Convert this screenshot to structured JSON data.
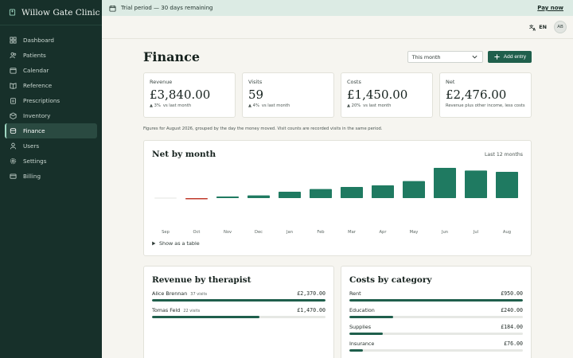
{
  "brand": {
    "name": "Willow Gate Clinic"
  },
  "sidebar": {
    "items": [
      {
        "label": "Dashboard",
        "icon": "grid-icon"
      },
      {
        "label": "Patients",
        "icon": "users-icon"
      },
      {
        "label": "Calendar",
        "icon": "calendar-icon"
      },
      {
        "label": "Reference",
        "icon": "book-icon"
      },
      {
        "label": "Prescriptions",
        "icon": "clipboard-icon"
      },
      {
        "label": "Inventory",
        "icon": "box-icon"
      },
      {
        "label": "Finance",
        "icon": "coins-icon",
        "active": true
      },
      {
        "label": "Users",
        "icon": "user-icon"
      },
      {
        "label": "Settings",
        "icon": "gear-icon"
      },
      {
        "label": "Billing",
        "icon": "card-icon"
      }
    ]
  },
  "trial": {
    "text": "Trial period — 30 days remaining",
    "cta": "Pay now"
  },
  "topbar": {
    "lang": "EN",
    "avatar": "AB"
  },
  "page": {
    "title": "Finance",
    "period_select": "This month",
    "add_entry": "Add entry"
  },
  "kpis": [
    {
      "label": "Revenue",
      "value": "£3,840.00",
      "change": "▲ 3%",
      "sub": "vs last month"
    },
    {
      "label": "Visits",
      "value": "59",
      "change": "▲ 4%",
      "sub": "vs last month"
    },
    {
      "label": "Costs",
      "value": "£1,450.00",
      "change": "▲ 20%",
      "sub": "vs last month"
    },
    {
      "label": "Net",
      "value": "£2,476.00",
      "change": "",
      "sub": "Revenue plus other income, less costs"
    }
  ],
  "note": "Figures for August 2026, grouped by the day the money moved. Visit counts are recorded visits in the same period.",
  "chart_card": {
    "title": "Net by month",
    "range": "Last 12 months",
    "toggle": "Show as a table"
  },
  "chart_data": {
    "type": "bar",
    "title": "Net by month",
    "categories": [
      "Sep",
      "Oct",
      "Nov",
      "Dec",
      "Jan",
      "Feb",
      "Mar",
      "Apr",
      "May",
      "Jun",
      "Jul",
      "Aug"
    ],
    "values": [
      0,
      -150,
      150,
      250,
      600,
      850,
      1050,
      1200,
      1600,
      2850,
      2600,
      2476
    ],
    "ylim": [
      -300,
      3000
    ],
    "grid": false,
    "colors": {
      "positive": "#1f7a61",
      "negative": "#c0392b",
      "zero": "#e3e6e2"
    }
  },
  "revenue_by_therapist": {
    "title": "Revenue by therapist",
    "max": 2370,
    "rows": [
      {
        "name": "Alice Brennan",
        "meta": "37 visits",
        "amount": "£2,370.00",
        "value": 2370
      },
      {
        "name": "Tomas Feld",
        "meta": "22 visits",
        "amount": "£1,470.00",
        "value": 1470
      }
    ]
  },
  "costs_by_category": {
    "title": "Costs by category",
    "max": 950,
    "rows": [
      {
        "name": "Rent",
        "amount": "£950.00",
        "value": 950
      },
      {
        "name": "Education",
        "amount": "£240.00",
        "value": 240
      },
      {
        "name": "Supplies",
        "amount": "£184.00",
        "value": 184
      },
      {
        "name": "Insurance",
        "amount": "£76.00",
        "value": 76
      }
    ]
  },
  "colors": {
    "accent": "#1f5f4c",
    "bar": "#1f7a61",
    "sidebar": "#17302a",
    "trial_bg": "#dcebe4"
  }
}
